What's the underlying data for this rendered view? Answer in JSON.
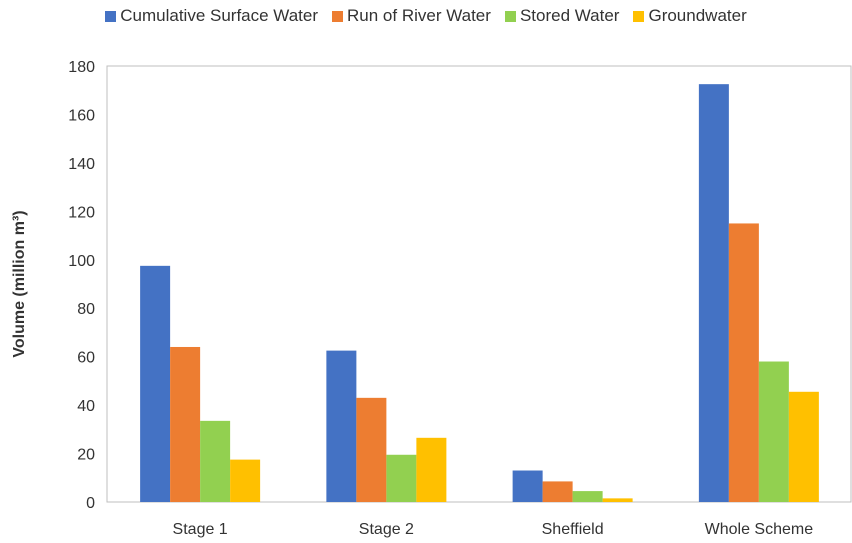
{
  "chart_data": {
    "type": "bar",
    "categories": [
      "Stage 1",
      "Stage 2",
      "Sheffield",
      "Whole Scheme"
    ],
    "series": [
      {
        "name": "Cumulative Surface Water",
        "color": "#4472C4",
        "values": [
          97.5,
          62.5,
          13,
          172.5
        ]
      },
      {
        "name": "Run of River Water",
        "color": "#ED7D31",
        "values": [
          64,
          43,
          8.5,
          115
        ]
      },
      {
        "name": "Stored Water",
        "color": "#92D050",
        "values": [
          33.5,
          19.5,
          4.5,
          58
        ]
      },
      {
        "name": "Groundwater",
        "color": "#FFC000",
        "values": [
          17.5,
          26.5,
          1.5,
          45.5
        ]
      }
    ],
    "ylabel": "Volume (million m³)",
    "ylim": [
      0,
      180
    ],
    "yticks": [
      0,
      20,
      40,
      60,
      80,
      100,
      120,
      140,
      160,
      180
    ],
    "grid": false,
    "legend_position": "top"
  }
}
